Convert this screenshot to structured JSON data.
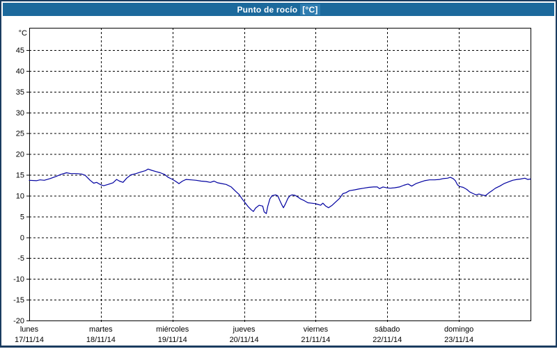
{
  "window": {
    "title_main": "Punto de rocío",
    "title_unit": "[°C]"
  },
  "colors": {
    "frame_border": "#1a3c60",
    "titlebar_bg": "#1c699c",
    "titlebar_unit_bg": "#2e7cb0",
    "title_text": "#ffffff",
    "plot_bg": "#ffffff",
    "grid": "#000000",
    "axis": "#000000",
    "label_text": "#000000",
    "line": "#0000a0"
  },
  "chart_data": {
    "type": "line",
    "title": "Punto de rocío [°C]",
    "y_unit_label": "°C",
    "ylabel": "",
    "xlabel": "",
    "ylim": [
      -20,
      50
    ],
    "y_ticks": [
      45,
      40,
      35,
      30,
      25,
      20,
      15,
      10,
      5,
      0,
      -5,
      -10,
      -15,
      -20
    ],
    "grid": "dashed",
    "legend_position": "none",
    "x_days": [
      {
        "name": "lunes",
        "date": "17/11/14"
      },
      {
        "name": "martes",
        "date": "18/11/14"
      },
      {
        "name": "miércoles",
        "date": "19/11/14"
      },
      {
        "name": "jueves",
        "date": "20/11/14"
      },
      {
        "name": "viernes",
        "date": "21/11/14"
      },
      {
        "name": "sábado",
        "date": "22/11/14"
      },
      {
        "name": "domingo",
        "date": "23/11/14"
      }
    ],
    "series": [
      {
        "name": "Punto de rocío",
        "unit": "°C",
        "x_unit": "days_from_start",
        "points": [
          [
            0.0,
            13.7
          ],
          [
            0.1,
            13.6
          ],
          [
            0.15,
            13.8
          ],
          [
            0.21,
            13.7
          ],
          [
            0.29,
            14.1
          ],
          [
            0.37,
            14.6
          ],
          [
            0.44,
            15.1
          ],
          [
            0.52,
            15.5
          ],
          [
            0.58,
            15.3
          ],
          [
            0.66,
            15.3
          ],
          [
            0.73,
            15.2
          ],
          [
            0.78,
            14.9
          ],
          [
            0.85,
            13.7
          ],
          [
            0.9,
            13.0
          ],
          [
            0.94,
            13.2
          ],
          [
            1.0,
            12.6
          ],
          [
            1.04,
            12.4
          ],
          [
            1.1,
            12.7
          ],
          [
            1.17,
            13.1
          ],
          [
            1.22,
            13.9
          ],
          [
            1.26,
            13.5
          ],
          [
            1.31,
            13.2
          ],
          [
            1.36,
            14.2
          ],
          [
            1.42,
            15.0
          ],
          [
            1.49,
            15.3
          ],
          [
            1.56,
            15.7
          ],
          [
            1.62,
            16.0
          ],
          [
            1.66,
            16.4
          ],
          [
            1.71,
            16.1
          ],
          [
            1.77,
            15.8
          ],
          [
            1.83,
            15.5
          ],
          [
            1.89,
            15.1
          ],
          [
            1.94,
            14.4
          ],
          [
            1.99,
            14.0
          ],
          [
            2.04,
            13.5
          ],
          [
            2.09,
            12.9
          ],
          [
            2.14,
            13.5
          ],
          [
            2.19,
            13.9
          ],
          [
            2.26,
            13.8
          ],
          [
            2.33,
            13.7
          ],
          [
            2.4,
            13.5
          ],
          [
            2.47,
            13.4
          ],
          [
            2.53,
            13.2
          ],
          [
            2.58,
            13.5
          ],
          [
            2.63,
            13.1
          ],
          [
            2.69,
            12.9
          ],
          [
            2.75,
            12.7
          ],
          [
            2.82,
            12.1
          ],
          [
            2.88,
            11.1
          ],
          [
            2.93,
            10.3
          ],
          [
            2.97,
            9.3
          ],
          [
            3.01,
            8.4
          ],
          [
            3.06,
            7.3
          ],
          [
            3.1,
            6.6
          ],
          [
            3.13,
            6.2
          ],
          [
            3.16,
            7.0
          ],
          [
            3.21,
            7.7
          ],
          [
            3.26,
            7.5
          ],
          [
            3.28,
            6.1
          ],
          [
            3.31,
            5.7
          ],
          [
            3.33,
            7.4
          ],
          [
            3.36,
            9.2
          ],
          [
            3.39,
            10.0
          ],
          [
            3.44,
            10.2
          ],
          [
            3.47,
            10.0
          ],
          [
            3.5,
            8.8
          ],
          [
            3.53,
            7.7
          ],
          [
            3.55,
            7.1
          ],
          [
            3.58,
            8.1
          ],
          [
            3.61,
            9.3
          ],
          [
            3.64,
            10.0
          ],
          [
            3.67,
            10.2
          ],
          [
            3.71,
            10.1
          ],
          [
            3.75,
            9.7
          ],
          [
            3.79,
            9.2
          ],
          [
            3.84,
            8.8
          ],
          [
            3.89,
            8.3
          ],
          [
            3.94,
            8.2
          ],
          [
            3.99,
            8.1
          ],
          [
            4.03,
            7.9
          ],
          [
            4.07,
            7.7
          ],
          [
            4.1,
            8.2
          ],
          [
            4.14,
            7.5
          ],
          [
            4.18,
            7.1
          ],
          [
            4.23,
            7.7
          ],
          [
            4.28,
            8.5
          ],
          [
            4.33,
            9.3
          ],
          [
            4.38,
            10.5
          ],
          [
            4.42,
            10.7
          ],
          [
            4.47,
            11.2
          ],
          [
            4.54,
            11.4
          ],
          [
            4.6,
            11.6
          ],
          [
            4.67,
            11.8
          ],
          [
            4.74,
            12.0
          ],
          [
            4.81,
            12.1
          ],
          [
            4.86,
            12.1
          ],
          [
            4.89,
            11.7
          ],
          [
            4.94,
            12.1
          ],
          [
            4.99,
            11.9
          ],
          [
            5.04,
            11.8
          ],
          [
            5.1,
            11.9
          ],
          [
            5.17,
            12.1
          ],
          [
            5.23,
            12.5
          ],
          [
            5.29,
            12.8
          ],
          [
            5.34,
            12.3
          ],
          [
            5.4,
            12.9
          ],
          [
            5.45,
            13.2
          ],
          [
            5.52,
            13.6
          ],
          [
            5.59,
            13.8
          ],
          [
            5.66,
            13.8
          ],
          [
            5.73,
            13.9
          ],
          [
            5.78,
            14.1
          ],
          [
            5.84,
            14.2
          ],
          [
            5.88,
            14.4
          ],
          [
            5.92,
            14.1
          ],
          [
            5.95,
            13.6
          ],
          [
            5.98,
            12.6
          ],
          [
            6.01,
            12.2
          ],
          [
            6.06,
            12.0
          ],
          [
            6.11,
            11.5
          ],
          [
            6.15,
            10.9
          ],
          [
            6.2,
            10.5
          ],
          [
            6.24,
            10.2
          ],
          [
            6.28,
            10.4
          ],
          [
            6.32,
            10.2
          ],
          [
            6.37,
            10.0
          ],
          [
            6.42,
            10.7
          ],
          [
            6.47,
            11.3
          ],
          [
            6.51,
            11.8
          ],
          [
            6.57,
            12.3
          ],
          [
            6.63,
            12.9
          ],
          [
            6.69,
            13.3
          ],
          [
            6.75,
            13.7
          ],
          [
            6.81,
            13.9
          ],
          [
            6.86,
            14.0
          ],
          [
            6.92,
            14.2
          ],
          [
            6.96,
            13.9
          ],
          [
            7.0,
            14.0
          ]
        ]
      }
    ]
  }
}
